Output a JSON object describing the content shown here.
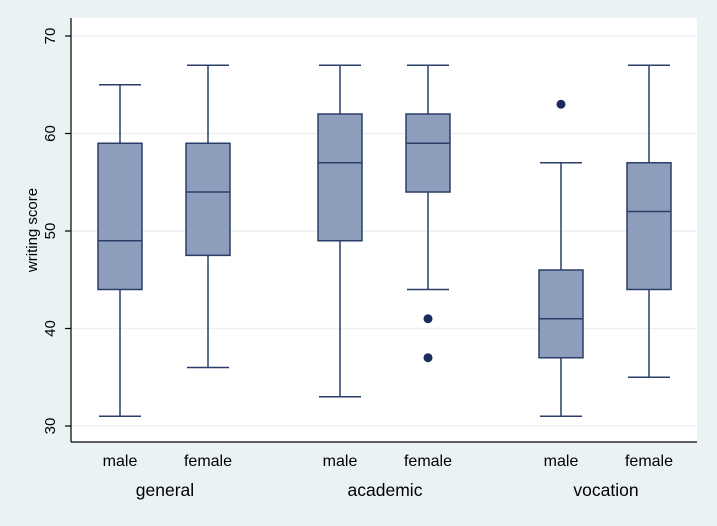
{
  "chart_data": {
    "type": "box",
    "title": "",
    "ylabel": "writing score",
    "ylim": [
      30,
      70
    ],
    "yticks": [
      30,
      40,
      50,
      60,
      70
    ],
    "grid": true,
    "groups": [
      "general",
      "academic",
      "vocation"
    ],
    "box_color": "#8e9dbb",
    "line_color": "#2a3e6a",
    "outlier_color": "#1a2a5a",
    "gridline_color": "#eaf2f3",
    "boxes": [
      {
        "group": "general",
        "category": "male",
        "whisker_low": 31,
        "q1": 44,
        "median": 49,
        "q3": 59,
        "whisker_high": 65,
        "outliers": []
      },
      {
        "group": "general",
        "category": "female",
        "whisker_low": 36,
        "q1": 47.5,
        "median": 54,
        "q3": 59,
        "whisker_high": 67,
        "outliers": []
      },
      {
        "group": "academic",
        "category": "male",
        "whisker_low": 33,
        "q1": 49,
        "median": 57,
        "q3": 62,
        "whisker_high": 67,
        "outliers": []
      },
      {
        "group": "academic",
        "category": "female",
        "whisker_low": 44,
        "q1": 54,
        "median": 59,
        "q3": 62,
        "whisker_high": 67,
        "outliers": [
          41,
          37
        ]
      },
      {
        "group": "vocation",
        "category": "male",
        "whisker_low": 31,
        "q1": 37,
        "median": 41,
        "q3": 46,
        "whisker_high": 57,
        "outliers": [
          63
        ]
      },
      {
        "group": "vocation",
        "category": "female",
        "whisker_low": 35,
        "q1": 44,
        "median": 52,
        "q3": 57,
        "whisker_high": 67,
        "outliers": []
      }
    ]
  }
}
